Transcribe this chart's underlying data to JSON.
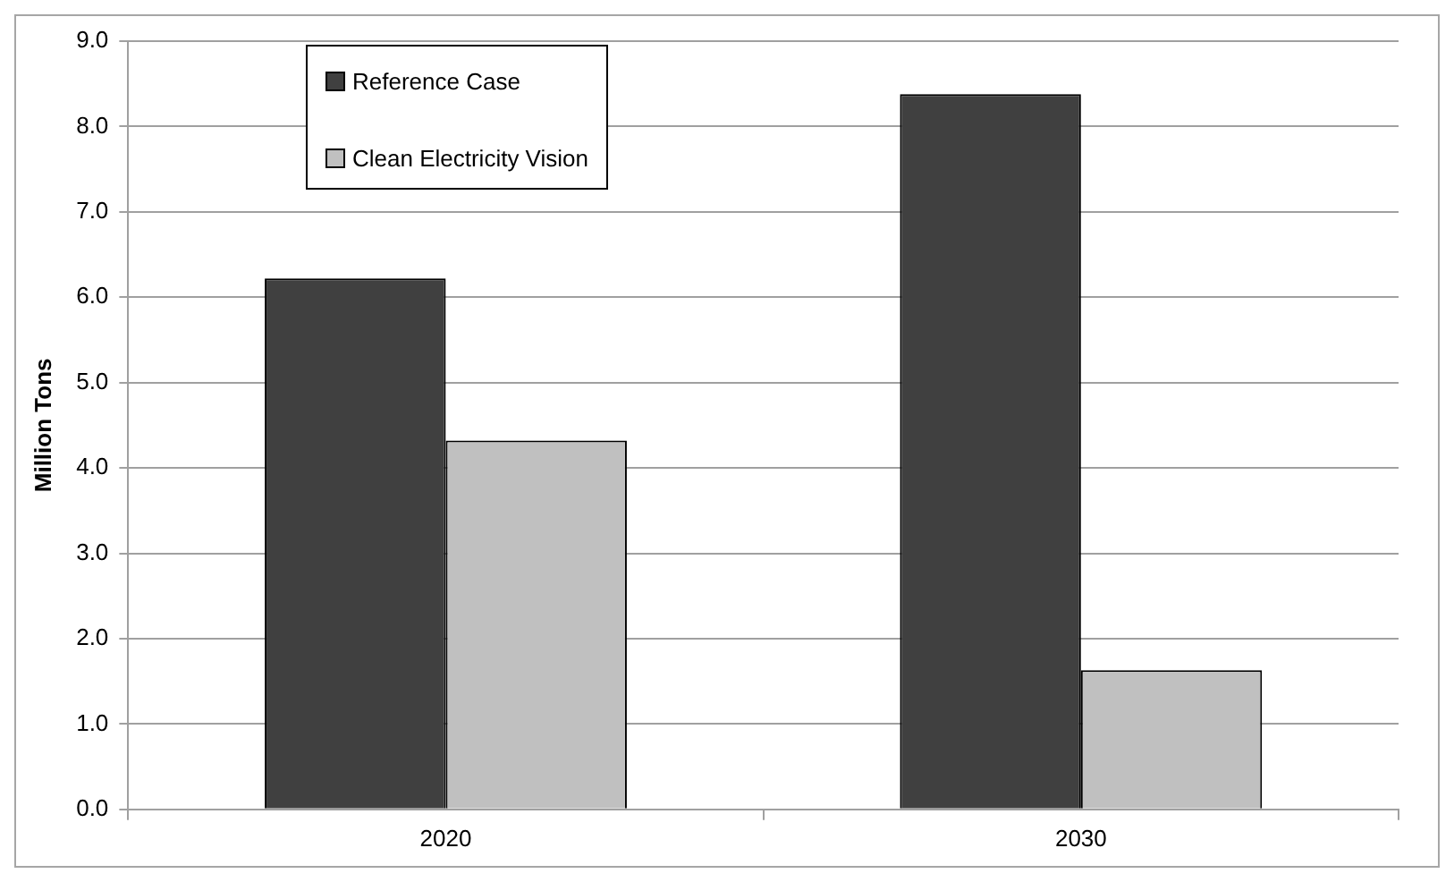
{
  "chart_data": {
    "type": "bar",
    "ylabel": "Million Tons",
    "categories": [
      "2020",
      "2030"
    ],
    "series": [
      {
        "name": "Reference Case",
        "color": "#404040",
        "values": [
          6.22,
          8.38
        ]
      },
      {
        "name": "Clean Electricity Vision",
        "color": "#c0c0c0",
        "values": [
          4.32,
          1.63
        ]
      }
    ],
    "ylim": [
      0,
      9
    ],
    "yticks": [
      {
        "value": 0,
        "label": "0.0"
      },
      {
        "value": 1,
        "label": "1.0"
      },
      {
        "value": 2,
        "label": "2.0"
      },
      {
        "value": 3,
        "label": "3.0"
      },
      {
        "value": 4,
        "label": "4.0"
      },
      {
        "value": 5,
        "label": "5.0"
      },
      {
        "value": 6,
        "label": "6.0"
      },
      {
        "value": 7,
        "label": "7.0"
      },
      {
        "value": 8,
        "label": "8.0"
      },
      {
        "value": 9,
        "label": "9.0"
      }
    ],
    "grid": "y",
    "legend": "top left"
  }
}
